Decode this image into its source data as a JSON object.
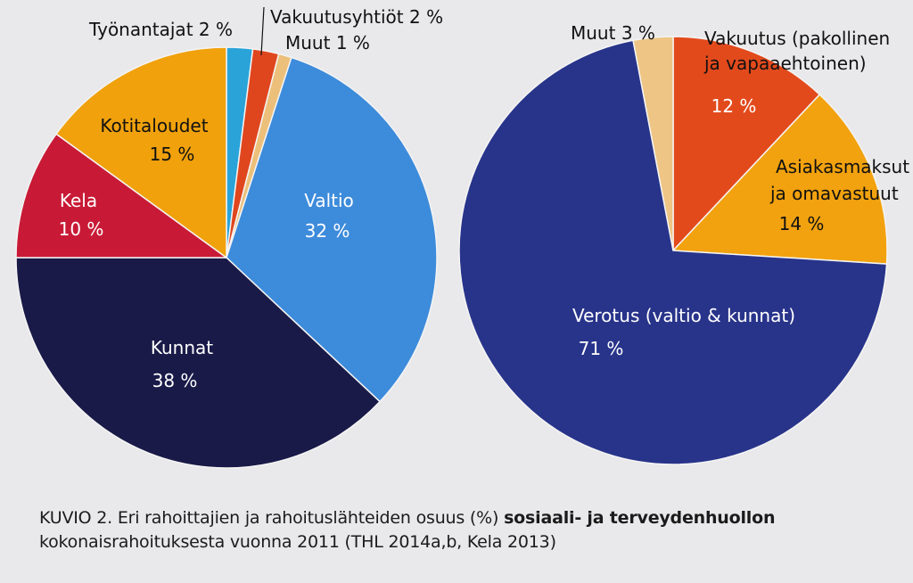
{
  "chart_data": [
    {
      "type": "pie",
      "title": "",
      "slices": [
        {
          "label": "Työnantajat",
          "pct_text": "2 %",
          "value": 2,
          "color": "#2aa3d9"
        },
        {
          "label": "Vakuutusyhtiöt",
          "pct_text": "2 %",
          "value": 2,
          "color": "#e0461e"
        },
        {
          "label": "Muut",
          "pct_text": "1 %",
          "value": 1,
          "color": "#ecc07a"
        },
        {
          "label": "Valtio",
          "pct_text": "32 %",
          "value": 32,
          "color": "#3d8bdb"
        },
        {
          "label": "Kunnat",
          "pct_text": "38 %",
          "value": 38,
          "color": "#191a48"
        },
        {
          "label": "Kela",
          "pct_text": "10 %",
          "value": 10,
          "color": "#c81a36"
        },
        {
          "label": "Kotitaloudet",
          "pct_text": "15 %",
          "value": 15,
          "color": "#f0a10c"
        }
      ]
    },
    {
      "type": "pie",
      "title": "",
      "slices": [
        {
          "label": "Vakuutus (pakollinen ja vapaaehtoinen)",
          "label_lines": [
            "Vakuutus (pakollinen",
            "ja vapaaehtoinen)"
          ],
          "pct_text": "12 %",
          "value": 12,
          "color": "#e24a1c"
        },
        {
          "label": "Asiakasmaksut ja omavastuut",
          "label_lines": [
            "Asiakasmaksut",
            "ja omavastuut"
          ],
          "pct_text": "14 %",
          "value": 14,
          "color": "#f2a20f"
        },
        {
          "label": "Verotus (valtio & kunnat)",
          "label_lines": [
            "Verotus (valtio & kunnat)"
          ],
          "pct_text": "71 %",
          "value": 71,
          "color": "#28348a"
        },
        {
          "label": "Muut",
          "label_lines": [
            "Muut"
          ],
          "pct_text": "3 %",
          "value": 3,
          "color": "#eec584"
        }
      ]
    }
  ],
  "caption": {
    "prefix": "KUVIO 2. Eri rahoittajien ja rahoituslähteiden osuus (%) ",
    "bold": "sosiaali- ja terveydenhuollon",
    "line2": "kokonaisrahoituksesta vuonna 2011 (THL 2014a,b, Kela 2013)"
  }
}
